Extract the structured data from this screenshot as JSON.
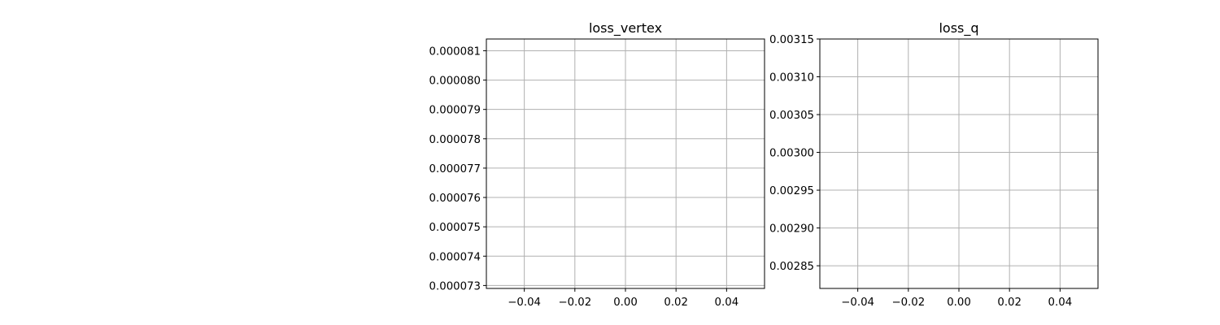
{
  "colors": {
    "background": "#ffffff",
    "axes_frame": "#000000",
    "grid": "#b0b0b0"
  },
  "chart_data": [
    {
      "type": "line",
      "title": "loss_vertex",
      "xlabel": "",
      "ylabel": "",
      "grid": true,
      "xlim": [
        -0.055,
        0.055
      ],
      "ylim": [
        7.29e-05,
        8.14e-05
      ],
      "x_ticks": [
        -0.04,
        -0.02,
        0.0,
        0.02,
        0.04
      ],
      "x_tick_labels": [
        "−0.04",
        "−0.02",
        "0.00",
        "0.02",
        "0.04"
      ],
      "y_ticks": [
        7.3e-05,
        7.4e-05,
        7.5e-05,
        7.6e-05,
        7.7e-05,
        7.8e-05,
        7.9e-05,
        8e-05,
        8.1e-05
      ],
      "y_tick_labels": [
        "0.000073",
        "0.000074",
        "0.000075",
        "0.000076",
        "0.000077",
        "0.000078",
        "0.000079",
        "0.000080",
        "0.000081"
      ],
      "series": []
    },
    {
      "type": "line",
      "title": "loss_q",
      "xlabel": "",
      "ylabel": "",
      "grid": true,
      "xlim": [
        -0.055,
        0.055
      ],
      "ylim": [
        0.00282,
        0.00315
      ],
      "x_ticks": [
        -0.04,
        -0.02,
        0.0,
        0.02,
        0.04
      ],
      "x_tick_labels": [
        "−0.04",
        "−0.02",
        "0.00",
        "0.02",
        "0.04"
      ],
      "y_ticks": [
        0.00285,
        0.0029,
        0.00295,
        0.003,
        0.00305,
        0.0031,
        0.00315
      ],
      "y_tick_labels": [
        "0.00285",
        "0.00290",
        "0.00295",
        "0.00300",
        "0.00305",
        "0.00310",
        "0.00315"
      ],
      "series": []
    }
  ]
}
